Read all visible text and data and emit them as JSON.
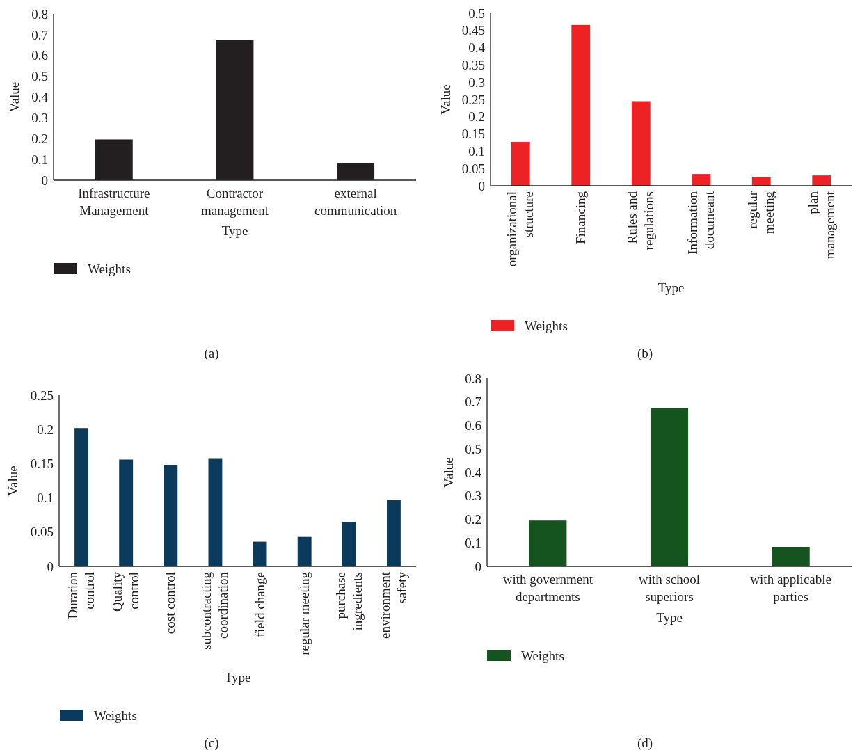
{
  "chart_data": [
    {
      "type": "bar",
      "title": "(a)",
      "xlabel": "Type",
      "ylabel": "Value",
      "categories": [
        "Infrastructure\nManagement",
        "Contractor\nmanagement",
        "external\ncommunication"
      ],
      "series": [
        {
          "name": "Weights",
          "color": "#231f20",
          "values": [
            0.196,
            0.676,
            0.082
          ]
        }
      ],
      "ylim": [
        0,
        0.8
      ],
      "yticks": [
        0,
        0.1,
        0.2,
        0.3,
        0.4,
        0.5,
        0.6,
        0.7,
        0.8
      ],
      "legend": "bottom left"
    },
    {
      "type": "bar",
      "title": "(b)",
      "xlabel": "Type",
      "ylabel": "Value",
      "categories": [
        "organizational\nstructure",
        "Financing",
        "Rules and\nregulations",
        "Information\ndocumeant",
        "regular\nmeeting",
        "plan\nmanagement"
      ],
      "series": [
        {
          "name": "Weights",
          "color": "#ed2224",
          "values": [
            0.127,
            0.466,
            0.245,
            0.034,
            0.026,
            0.03
          ]
        }
      ],
      "ylim": [
        0,
        0.5
      ],
      "yticks": [
        {
          "value": 0,
          "label": "0"
        },
        {
          "value": 0.05,
          "label": "0.05"
        },
        {
          "value": 0.1,
          "label": "0.1"
        },
        {
          "value": 0.15,
          "label": "0.15"
        },
        {
          "value": 0.2,
          "label": "0.2"
        },
        {
          "value": 0.25,
          "label": "0.25"
        },
        {
          "value": 0.3,
          "label": "0.3"
        },
        {
          "value": 0.35,
          "label": "0.35"
        },
        {
          "value": 0.4,
          "label": "0.4"
        },
        {
          "value": 0.45,
          "label": "0.45"
        },
        {
          "value": 0.5,
          "label": "0.5"
        }
      ],
      "legend": "bottom left"
    },
    {
      "type": "bar",
      "title": "(c)",
      "xlabel": "Type",
      "ylabel": "Value",
      "categories": [
        "Duration\ncontrol",
        "Quality\ncontrol",
        "cost control",
        "subcontracting\ncoordination",
        "field change",
        "regular meeting",
        "purchase\ningredients",
        "environment\nsafety"
      ],
      "series": [
        {
          "name": "Weights",
          "color": "#0b3a5c",
          "values": [
            0.202,
            0.156,
            0.148,
            0.157,
            0.036,
            0.043,
            0.065,
            0.097
          ]
        }
      ],
      "ylim": [
        0,
        0.25
      ],
      "yticks": [
        0,
        0.05,
        0.1,
        0.15,
        0.2,
        0.25
      ],
      "legend": "bottom left"
    },
    {
      "type": "bar",
      "title": "(d)",
      "xlabel": "Type",
      "ylabel": "Value",
      "categories": [
        "with government\ndepartments",
        "with school\nsuperiors",
        "with applicable\nparties"
      ],
      "series": [
        {
          "name": "Weights",
          "color": "#16541f",
          "values": [
            0.195,
            0.674,
            0.083
          ]
        }
      ],
      "ylim": [
        0,
        0.8
      ],
      "yticks": [
        0,
        0.1,
        0.2,
        0.3,
        0.4,
        0.5,
        0.6,
        0.7,
        0.8
      ],
      "legend": "bottom left"
    }
  ]
}
